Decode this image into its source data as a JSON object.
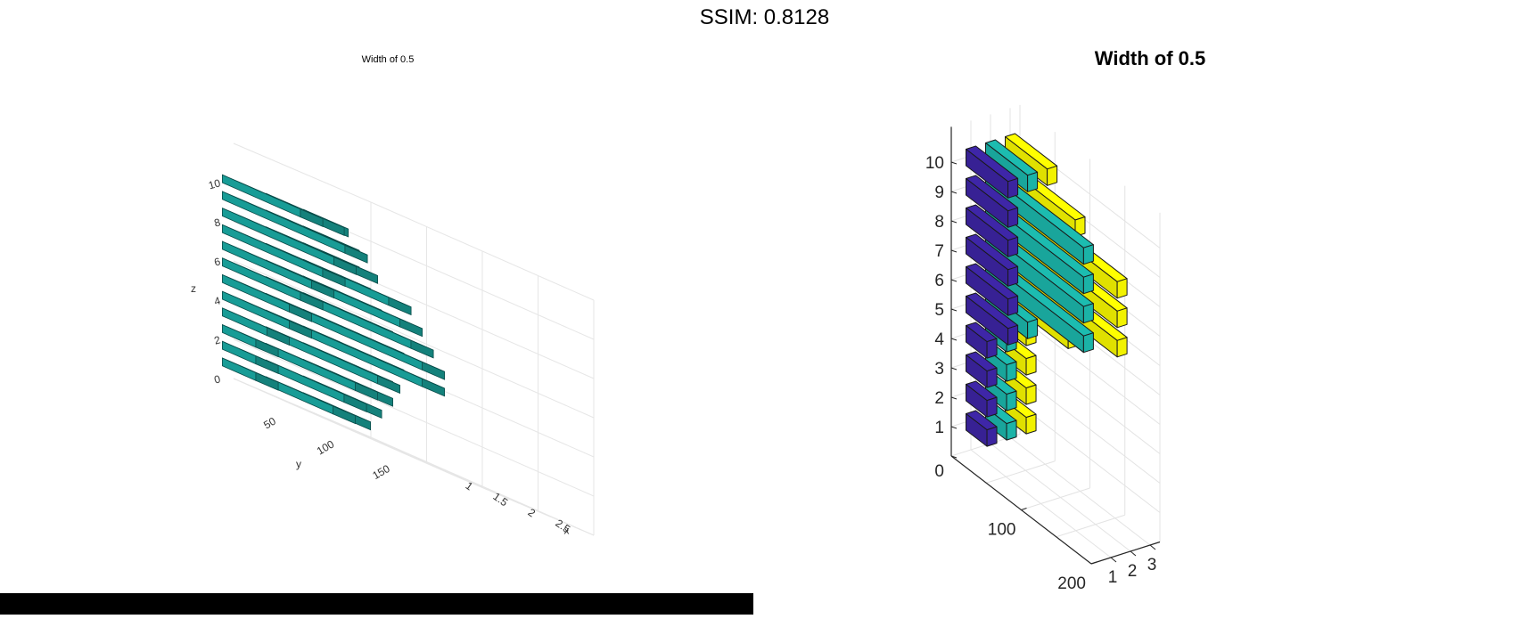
{
  "header": {
    "ssim_text": "SSIM: 0.8128"
  },
  "left_chart_data": {
    "type": "bar3",
    "title": "Width of 0.5",
    "xlabel": "x",
    "ylabel": "y",
    "zlabel": "z",
    "xticks": [
      "1",
      "1.5",
      "2",
      "2.5"
    ],
    "yticks": [
      "50",
      "100",
      "150"
    ],
    "zticks": [
      "0",
      "2",
      "4",
      "6",
      "8",
      "10"
    ],
    "colors": {
      "bar": "#1cb8b0"
    }
  },
  "chart_data": {
    "type": "bar3",
    "title": "Width of 0.5",
    "xlabel": "",
    "ylabel": "",
    "zlabel": "",
    "bar_width": 0.5,
    "xticks": [
      "1",
      "2",
      "3"
    ],
    "yticks": [
      "100",
      "200"
    ],
    "zticks": [
      "0",
      "1",
      "2",
      "3",
      "4",
      "5",
      "6",
      "7",
      "8",
      "9",
      "10"
    ],
    "zlim": [
      0,
      10
    ],
    "grid": true,
    "series": [
      {
        "x": 1,
        "color": "#3e26a8",
        "values": [
          30,
          30,
          30,
          30,
          60,
          60,
          60,
          60,
          60,
          60
        ]
      },
      {
        "x": 2,
        "color": "#1cbcb0",
        "values": [
          30,
          30,
          30,
          30,
          60,
          140,
          140,
          140,
          140,
          60
        ]
      },
      {
        "x": 3,
        "color": "#ffff00",
        "values": [
          30,
          30,
          30,
          30,
          90,
          160,
          160,
          160,
          100,
          60
        ]
      }
    ]
  }
}
